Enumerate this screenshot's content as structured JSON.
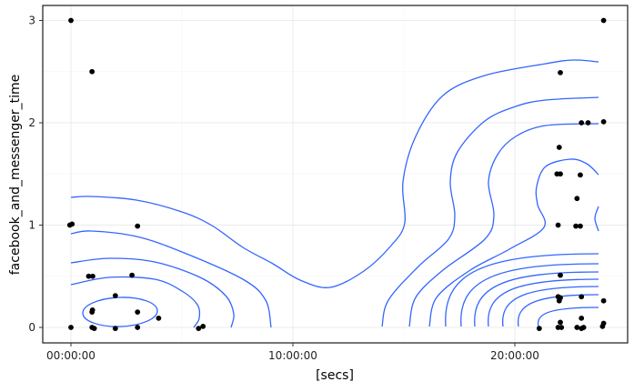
{
  "chart_data": {
    "type": "scatter",
    "overlay": "density_2d contours",
    "title": "",
    "xlabel": "[secs]",
    "ylabel": "facebook_and_messenger_time",
    "x_unit": "hours",
    "xlim": [
      -1.2,
      25.1
    ],
    "ylim": [
      -0.15,
      3.15
    ],
    "x_ticks": [
      {
        "value": 0,
        "label": "00:00:00"
      },
      {
        "value": 10,
        "label": "10:00:00"
      },
      {
        "value": 20,
        "label": "20:00:00"
      }
    ],
    "y_ticks": [
      {
        "value": 0,
        "label": "0"
      },
      {
        "value": 1,
        "label": "1"
      },
      {
        "value": 2,
        "label": "2"
      },
      {
        "value": 3,
        "label": "3"
      }
    ],
    "grid": true,
    "colors": {
      "points": "#000000",
      "contours": "#3366FF",
      "grid": "#ebebeb"
    },
    "points": [
      [
        0.0,
        3.0
      ],
      [
        0.95,
        2.5
      ],
      [
        -0.05,
        1.0
      ],
      [
        0.05,
        1.01
      ],
      [
        3.0,
        0.99
      ],
      [
        0.8,
        0.5
      ],
      [
        0.98,
        0.5
      ],
      [
        2.75,
        0.51
      ],
      [
        2.0,
        0.31
      ],
      [
        0.95,
        0.15
      ],
      [
        0.97,
        0.17
      ],
      [
        3.0,
        0.15
      ],
      [
        3.95,
        0.09
      ],
      [
        0.0,
        0.0
      ],
      [
        0.95,
        0.0
      ],
      [
        1.05,
        -0.01
      ],
      [
        2.0,
        -0.01
      ],
      [
        3.0,
        0.0
      ],
      [
        5.75,
        -0.01
      ],
      [
        5.95,
        0.01
      ],
      [
        24.0,
        3.0
      ],
      [
        22.05,
        2.49
      ],
      [
        23.0,
        2.0
      ],
      [
        23.3,
        2.0
      ],
      [
        24.0,
        2.01
      ],
      [
        22.0,
        1.76
      ],
      [
        21.9,
        1.5
      ],
      [
        22.05,
        1.5
      ],
      [
        22.95,
        1.49
      ],
      [
        22.8,
        1.26
      ],
      [
        21.95,
        1.0
      ],
      [
        22.75,
        0.99
      ],
      [
        22.95,
        0.99
      ],
      [
        22.05,
        0.51
      ],
      [
        21.95,
        0.3
      ],
      [
        22.05,
        0.29
      ],
      [
        22.0,
        0.26
      ],
      [
        23.0,
        0.3
      ],
      [
        24.0,
        0.26
      ],
      [
        22.05,
        0.05
      ],
      [
        23.0,
        0.09
      ],
      [
        21.1,
        -0.01
      ],
      [
        21.95,
        0.0
      ],
      [
        22.1,
        0.0
      ],
      [
        22.8,
        0.0
      ],
      [
        23.0,
        -0.01
      ],
      [
        23.1,
        0.0
      ],
      [
        23.95,
        0.01
      ],
      [
        24.0,
        0.04
      ]
    ]
  }
}
